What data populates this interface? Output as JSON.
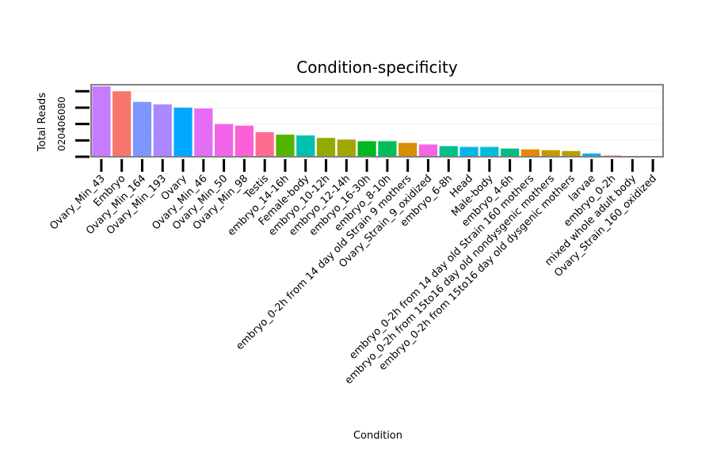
{
  "chart_data": {
    "type": "bar",
    "title": "Condition-specificity",
    "xlabel": "Condition",
    "ylabel": "Total Reads",
    "ylim": [
      0,
      88
    ],
    "yticks": [
      0,
      20,
      40,
      60,
      80
    ],
    "grid": true,
    "legend": "none",
    "categories": [
      "Ovary_Min_43",
      "Embryo",
      "Ovary_Min_164",
      "Ovary_Min_193",
      "Ovary",
      "Ovary_Min_46",
      "Ovary_Min_50",
      "Ovary_Min_98",
      "Testis",
      "embryo_14-16h",
      "Female-body",
      "embryo_10-12h",
      "embryo_12-14h",
      "embryo_16-30h",
      "embryo_8-10h",
      "embryo_0-2h from 14 day old Strain 9 mothers",
      "Ovary_Strain_9_oxidized",
      "embryo_6-8h",
      "Head",
      "Male-body",
      "embryo_4-6h",
      "embryo_0-2h from 14 day old Strain 160 mothers",
      "embryo_0-2h from 15to16 day old nondysgenic mothers",
      "embryo_0-2h from 15to16 day old dysgenic mothers",
      "larvae",
      "embryo_0-2h",
      "mixed whole adult body",
      "Ovary_Strain_160_oxidized"
    ],
    "values": [
      86,
      80,
      67,
      64,
      60,
      59,
      40,
      38,
      30,
      27,
      26,
      23,
      21,
      19,
      19,
      17,
      15,
      13,
      12,
      12,
      10,
      9,
      8,
      7,
      4,
      1.5,
      1,
      1
    ],
    "colors": [
      "#c77cff",
      "#f8766d",
      "#7f96ff",
      "#ab88ff",
      "#00a9ff",
      "#e46ef3",
      "#f265e8",
      "#fb61d7",
      "#ff6c91",
      "#53b400",
      "#00c0af",
      "#94aa00",
      "#a3a500",
      "#00b81f",
      "#00bd5c",
      "#d89000",
      "#f564e3",
      "#00c08b",
      "#00b6eb",
      "#00bcd8",
      "#00bf7d",
      "#e58700",
      "#c49a00",
      "#b79f00",
      "#00b0f6",
      "#ff699c",
      "#7cae00",
      "#e76bf3"
    ]
  }
}
